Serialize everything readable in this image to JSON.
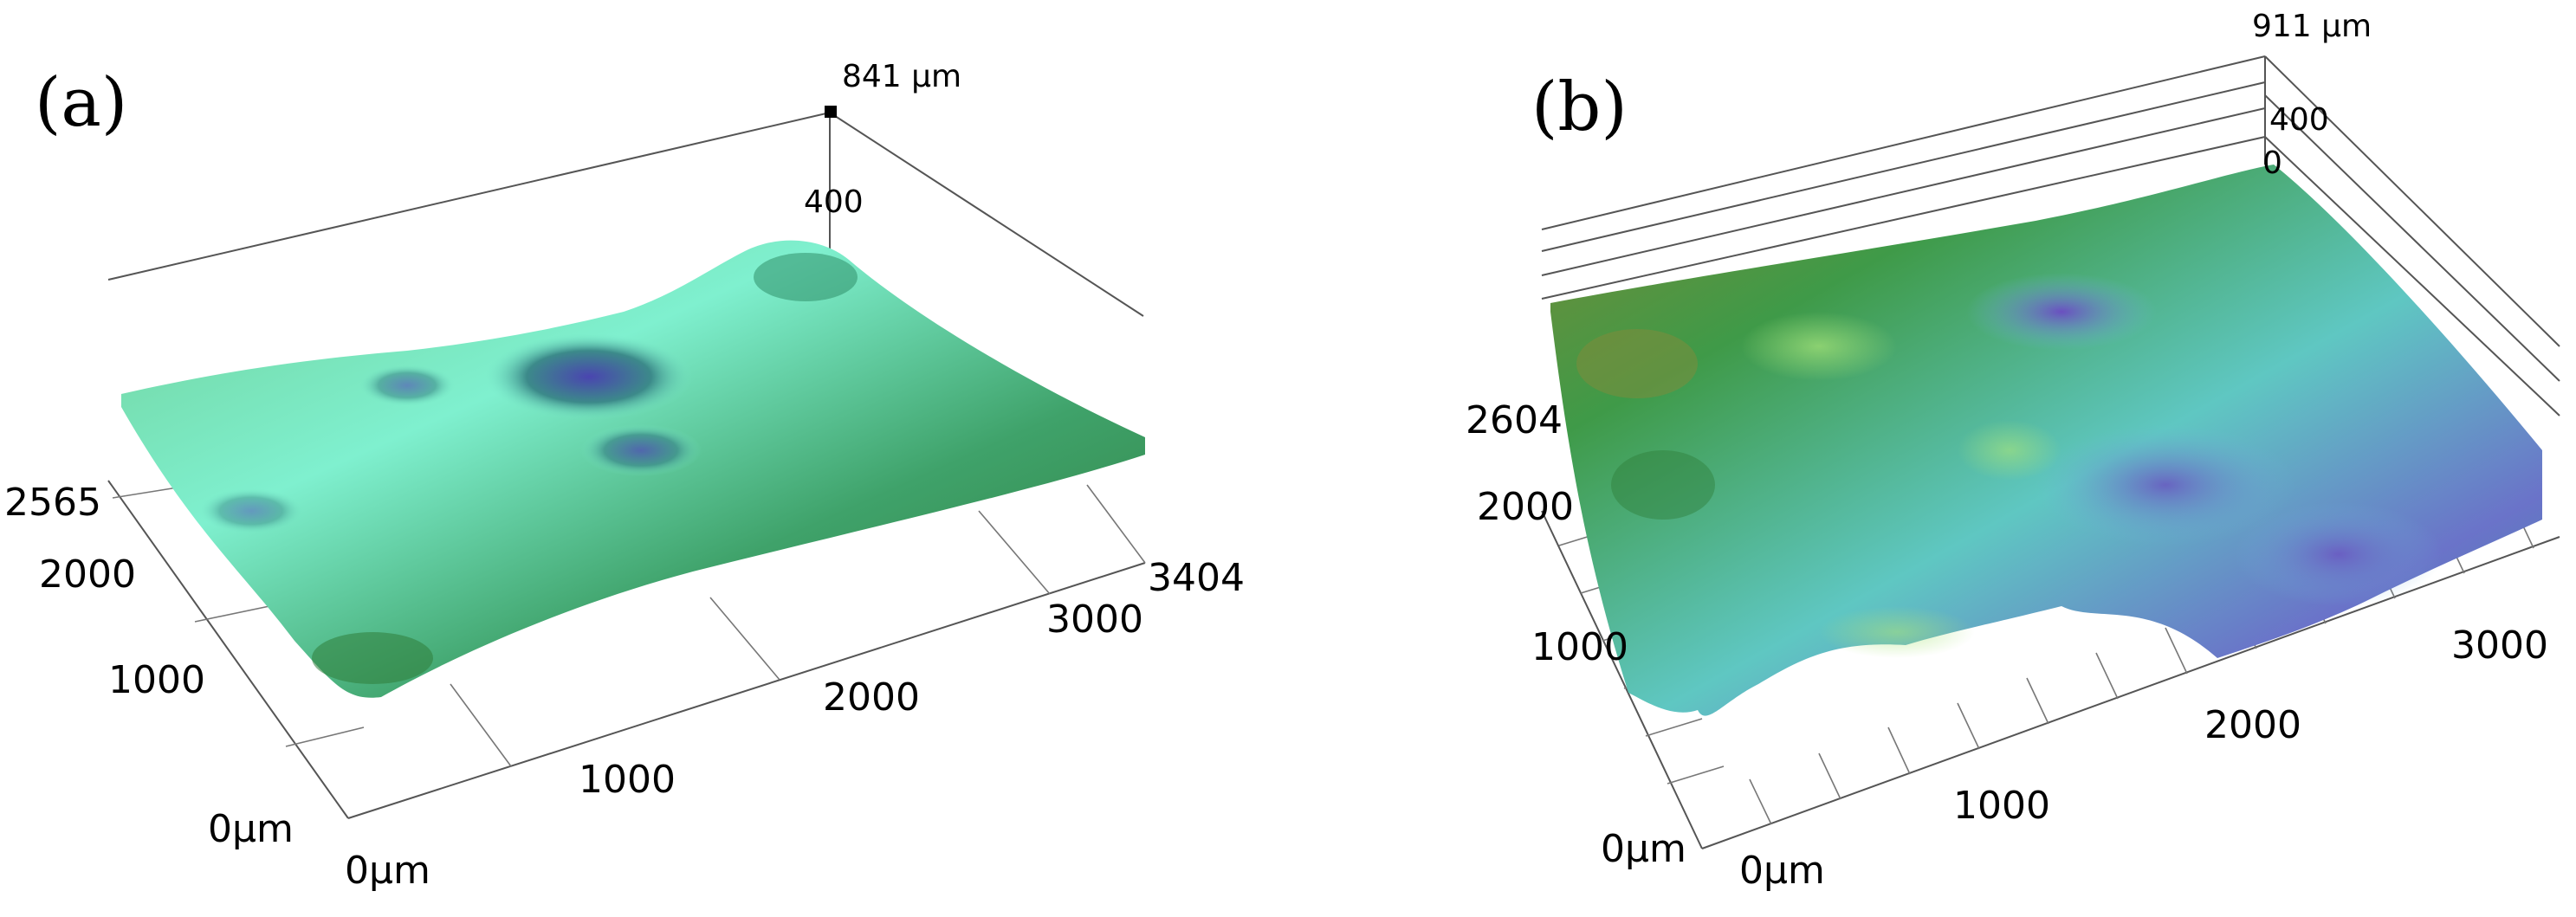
{
  "panels": [
    {
      "label": "(a)",
      "z_top": "841 µm",
      "z_mid": "400",
      "y_max": "2565",
      "y_ticks": [
        "2000",
        "1000"
      ],
      "y_zero": "0µm",
      "x_zero": "0µm",
      "x_ticks": [
        "1000",
        "2000",
        "3000"
      ],
      "x_max": "3404"
    },
    {
      "label": "(b)",
      "z_top": "911 µm",
      "z_mid": "400",
      "z_zero": "0",
      "y_max": "2604",
      "y_ticks": [
        "2000",
        "1000"
      ],
      "y_zero": "0µm",
      "x_zero": "0µm",
      "x_ticks": [
        "1000",
        "2000",
        "3000"
      ]
    }
  ],
  "colors": {
    "surface_green": "#3f9a48",
    "surface_cyan": "#79f0c9",
    "surface_teal": "#2f8f82",
    "surface_violet": "#5a5fc0",
    "surface_olive": "#8a8a3a"
  }
}
